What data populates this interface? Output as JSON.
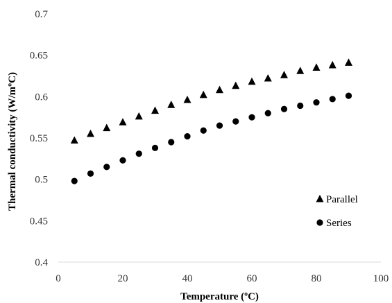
{
  "chart_data": {
    "type": "scatter",
    "title": "",
    "xlabel": "Temperature (ºC)",
    "ylabel": "Thermal conductivity (W/mºC)",
    "xlim": [
      0,
      100
    ],
    "ylim": [
      0.4,
      0.7
    ],
    "x_ticks": [
      "0",
      "20",
      "40",
      "60",
      "80",
      "100"
    ],
    "y_ticks": [
      "0.4",
      "0.45",
      "0.5",
      "0.55",
      "0.6",
      "0.65",
      "0.7"
    ],
    "grid": false,
    "legend_position": "bottom-right",
    "series": [
      {
        "name": "Parallel",
        "marker": "triangle",
        "color": "#000000",
        "x": [
          5,
          10,
          15,
          20,
          25,
          30,
          35,
          40,
          45,
          50,
          55,
          60,
          65,
          70,
          75,
          80,
          85,
          90
        ],
        "y": [
          0.547,
          0.555,
          0.562,
          0.569,
          0.576,
          0.583,
          0.59,
          0.596,
          0.602,
          0.608,
          0.613,
          0.618,
          0.622,
          0.626,
          0.631,
          0.635,
          0.638,
          0.641
        ]
      },
      {
        "name": "Series",
        "marker": "circle",
        "color": "#000000",
        "x": [
          5,
          10,
          15,
          20,
          25,
          30,
          35,
          40,
          45,
          50,
          55,
          60,
          65,
          70,
          75,
          80,
          85,
          90
        ],
        "y": [
          0.498,
          0.507,
          0.515,
          0.523,
          0.531,
          0.538,
          0.545,
          0.552,
          0.559,
          0.565,
          0.57,
          0.575,
          0.58,
          0.585,
          0.589,
          0.593,
          0.597,
          0.601
        ]
      }
    ]
  }
}
